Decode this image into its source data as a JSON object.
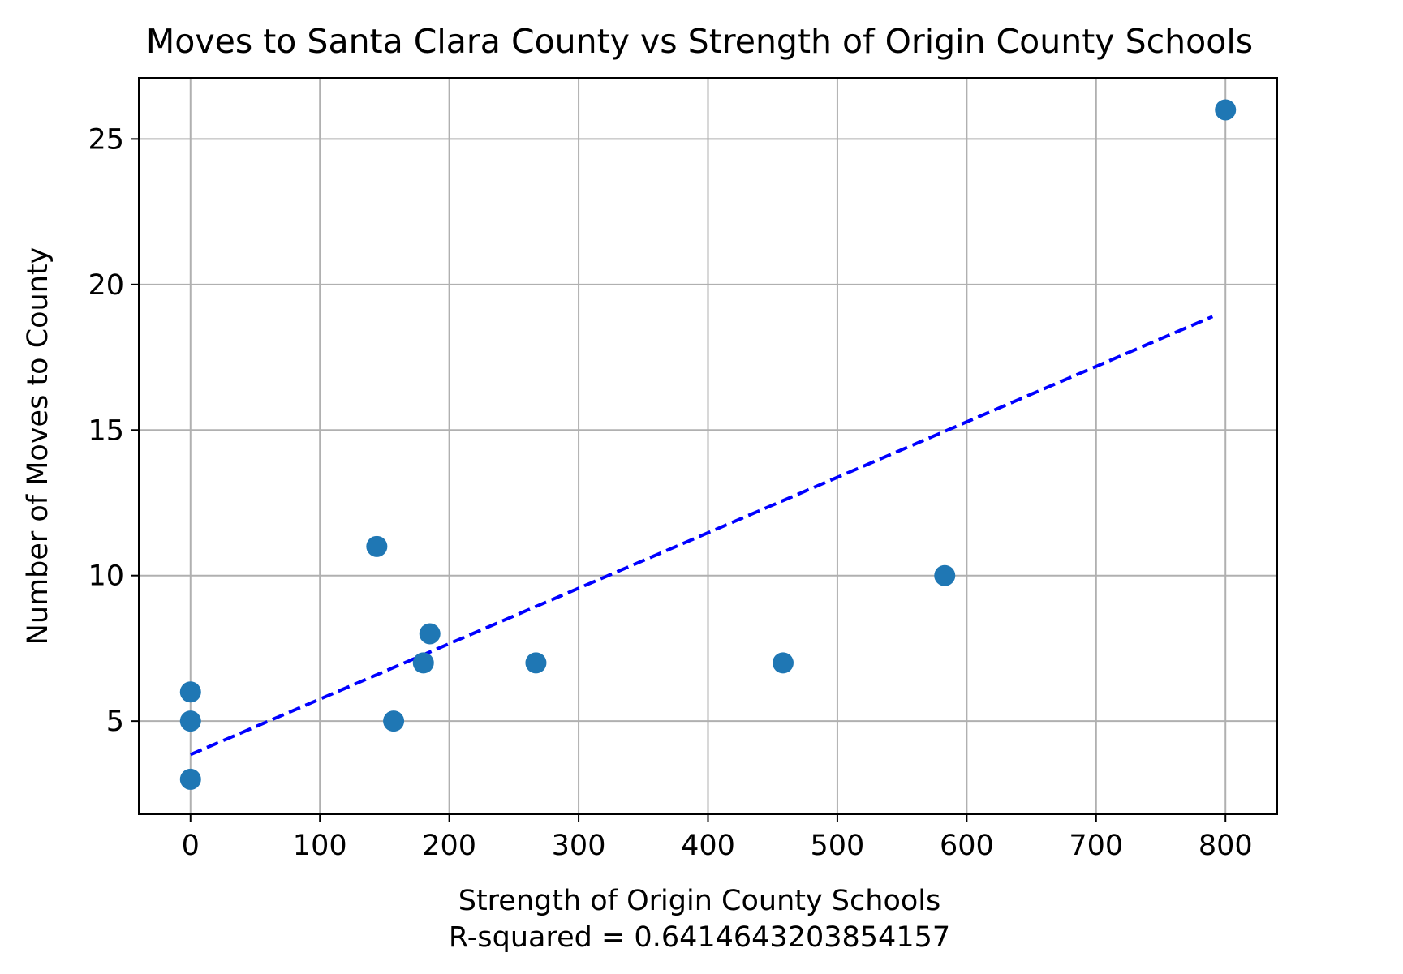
{
  "chart_data": {
    "type": "scatter",
    "title": "Moves to Santa Clara County vs Strength of Origin County Schools",
    "xlabel": "Strength of Origin County Schools",
    "xlabel_line2": "R-squared = 0.6414643203854157",
    "ylabel": "Number of Moves to County",
    "xlim": [
      -40,
      840
    ],
    "ylim": [
      1.8,
      27.1
    ],
    "xticks": [
      0,
      100,
      200,
      300,
      400,
      500,
      600,
      700,
      800
    ],
    "yticks": [
      5,
      10,
      15,
      20,
      25
    ],
    "grid": true,
    "points": [
      {
        "x": 0,
        "y": 3
      },
      {
        "x": 0,
        "y": 5
      },
      {
        "x": 0,
        "y": 6
      },
      {
        "x": 144,
        "y": 11
      },
      {
        "x": 157,
        "y": 5
      },
      {
        "x": 180,
        "y": 7
      },
      {
        "x": 185,
        "y": 8
      },
      {
        "x": 267,
        "y": 7
      },
      {
        "x": 458,
        "y": 7
      },
      {
        "x": 583,
        "y": 10
      },
      {
        "x": 800,
        "y": 26
      }
    ],
    "trendline": {
      "x": [
        0,
        790
      ],
      "y": [
        3.85,
        18.9
      ],
      "style": "dashed"
    },
    "colors": {
      "points": "#1f77b4",
      "trendline": "#0000ff",
      "grid": "#b0b0b0"
    }
  }
}
